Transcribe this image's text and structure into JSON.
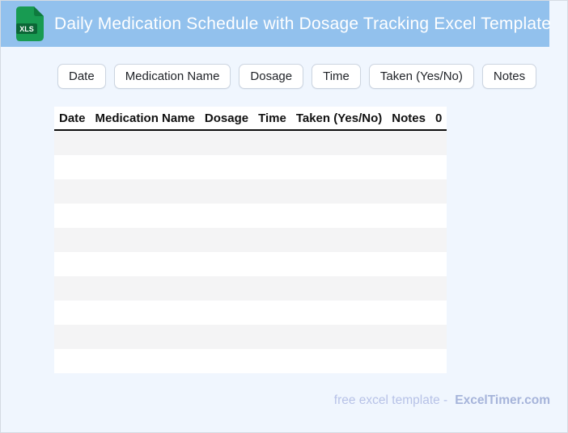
{
  "header": {
    "title": "Daily Medication Schedule with Dosage Tracking Excel Template",
    "icon_label": "XLS"
  },
  "chips": [
    {
      "label": "Date"
    },
    {
      "label": "Medication Name"
    },
    {
      "label": "Dosage"
    },
    {
      "label": "Time"
    },
    {
      "label": "Taken (Yes/No)"
    },
    {
      "label": "Notes"
    }
  ],
  "table": {
    "columns": [
      "Date",
      "Medication Name",
      "Dosage",
      "Time",
      "Taken (Yes/No)",
      "Notes",
      "0"
    ],
    "empty_row_count": 10
  },
  "footer": {
    "prefix": "free excel template -",
    "brand": "ExcelTimer.com"
  },
  "colors": {
    "header_bg": "#92c1ed",
    "page_bg": "#f0f6fe",
    "page_border": "#d5dbe3",
    "stripe_row": "#f4f4f5",
    "white_row": "#ffffff",
    "table_header_border": "#0d0d0d",
    "icon_green": "#189b52",
    "icon_green_dark": "#0b6636",
    "footer_text": "#b7c2e7",
    "footer_brand": "#a6b4da"
  }
}
